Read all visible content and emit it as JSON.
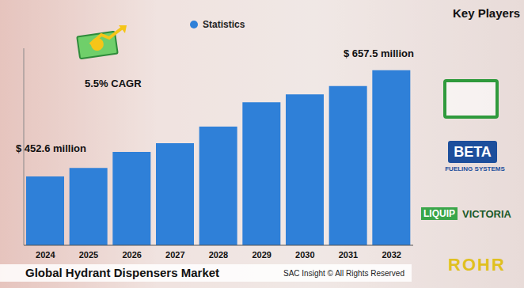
{
  "chart_data": {
    "type": "bar",
    "title": "Global Hydrant Dispensers Market",
    "categories": [
      "2024",
      "2025",
      "2026",
      "2027",
      "2028",
      "2029",
      "2030",
      "2031",
      "2032"
    ],
    "series": [
      {
        "name": "Statistics",
        "color": "#2f80d8",
        "values": [
          452.6,
          469,
          500,
          517,
          549,
          596,
          611,
          627,
          657.5
        ]
      }
    ],
    "ylim": [
      320,
      700
    ],
    "tick_labels": "x",
    "grid": false,
    "legend": "top",
    "annotations": [
      "5.5% CAGR",
      "$ 452.6 million",
      "$ 657.5 million"
    ],
    "footer": "SAC Insight © All Rights Reserved",
    "key_players": {
      "title": "Key Players",
      "names": [
        "BETA",
        "FUELING SYSTEMS",
        "LIQUIP",
        "VICTORIA",
        "ROHR"
      ]
    }
  }
}
